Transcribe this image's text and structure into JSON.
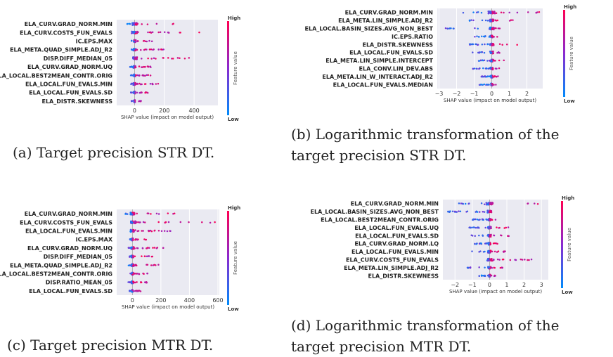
{
  "colorbar": {
    "high": "High",
    "low": "Low",
    "title": "Feature value",
    "color_high": "#ff0052",
    "color_low": "#008bfb"
  },
  "xaxis_title": "SHAP value (impact on model output)",
  "panels": [
    {
      "caption": "(a) Target precision STR DT."
    },
    {
      "caption": "(b) Logarithmic transformation of the target precision STR DT."
    },
    {
      "caption": "(c) Target precision MTR DT."
    },
    {
      "caption": "(d) Logarithmic transformation of the target precision MTR DT."
    }
  ],
  "chart_data": [
    {
      "type": "scatter",
      "subtype": "shap_beeswarm",
      "features": [
        "ELA_CURV.GRAD_NORM.MIN",
        "ELA_CURV.COSTS_FUN_EVALS",
        "IC.EPS.MAX",
        "ELA_META.QUAD_SIMPLE.ADJ_R2",
        "DISP.DIFF_MEDIAN_05",
        "ELA_CURV.GRAD_NORM.UQ",
        "ELA_LOCAL.BEST2MEAN_CONTR.ORIG",
        "ELA_LOCAL.FUN_EVALS.MIN",
        "ELA_LOCAL.FUN_EVALS.SD",
        "ELA_DISTR.SKEWNESS"
      ],
      "xticks": [
        0,
        200,
        400
      ],
      "xlim": [
        -120,
        560
      ],
      "spread": [
        [
          -60,
          330
        ],
        [
          -20,
          470
        ],
        [
          -20,
          120
        ],
        [
          -20,
          200
        ],
        [
          -10,
          400
        ],
        [
          -30,
          150
        ],
        [
          -25,
          120
        ],
        [
          -25,
          180
        ],
        [
          -25,
          90
        ],
        [
          -20,
          60
        ]
      ],
      "xlabel": "SHAP value (impact on model output)",
      "grid": true
    },
    {
      "type": "scatter",
      "subtype": "shap_beeswarm",
      "features": [
        "ELA_CURV.GRAD_NORM.MIN",
        "ELA_META.LIN_SIMPLE.ADJ_R2",
        "ELA_LOCAL.BASIN_SIZES.AVG_NON_BEST",
        "IC.EPS.RATIO",
        "ELA_DISTR.SKEWNESS",
        "ELA_LOCAL.FUN_EVALS.SD",
        "ELA_META.LIN_SIMPLE.INTERCEPT",
        "ELA_CONV.LIN_DEV.ABS",
        "ELA_META.LIN_W_INTERACT.ADJ_R2",
        "ELA_LOCAL.FUN_EVALS.MEDIAN"
      ],
      "xticks": [
        -3,
        -2,
        -1,
        0,
        1,
        2
      ],
      "xlim": [
        -3.1,
        2.9
      ],
      "spread": [
        [
          -2.0,
          2.8
        ],
        [
          -1.3,
          1.2
        ],
        [
          -2.8,
          0.5
        ],
        [
          -1.0,
          0.4
        ],
        [
          -1.3,
          1.6
        ],
        [
          -1.1,
          1.0
        ],
        [
          -0.8,
          0.7
        ],
        [
          -1.1,
          0.6
        ],
        [
          -0.6,
          0.4
        ],
        [
          -0.8,
          0.3
        ]
      ],
      "xlabel": "SHAP value (impact on model output)",
      "grid": true
    },
    {
      "type": "scatter",
      "subtype": "shap_beeswarm",
      "features": [
        "ELA_CURV.GRAD_NORM.MIN",
        "ELA_CURV.COSTS_FUN_EVALS",
        "ELA_LOCAL.FUN_EVALS.MIN",
        "IC.EPS.MAX",
        "ELA_CURV.GRAD_NORM.UQ",
        "DISP.DIFF_MEDIAN_05",
        "ELA_META.QUAD_SIMPLE.ADJ_R2",
        "ELA_LOCAL.BEST2MEAN_CONTR.ORIG",
        "DISP.RATIO_MEAN_05",
        "ELA_LOCAL.FUN_EVALS.SD"
      ],
      "xticks": [
        0,
        200,
        400,
        600
      ],
      "xlim": [
        -110,
        610
      ],
      "spread": [
        [
          -60,
          330
        ],
        [
          -10,
          590
        ],
        [
          -20,
          330
        ],
        [
          -20,
          120
        ],
        [
          -30,
          220
        ],
        [
          -20,
          150
        ],
        [
          -30,
          200
        ],
        [
          -30,
          120
        ],
        [
          -30,
          120
        ],
        [
          -20,
          60
        ]
      ],
      "xlabel": "SHAP value (impact on model output)",
      "grid": true
    },
    {
      "type": "scatter",
      "subtype": "shap_beeswarm",
      "features": [
        "ELA_CURV.GRAD_NORM.MIN",
        "ELA_LOCAL.BASIN_SIZES.AVG_NON_BEST",
        "ELA_LOCAL.BEST2MEAN_CONTR.ORIG",
        "ELA_LOCAL.FUN_EVALS.UQ",
        "ELA_LOCAL.FUN_EVALS.SD",
        "ELA_CURV.GRAD_NORM.LQ",
        "ELA_LOCAL.FUN_EVALS.MIN",
        "ELA_CURV.COSTS_FUN_EVALS",
        "ELA_META.LIN_SIMPLE.ADJ_R2",
        "ELA_DISTR.SKEWNESS"
      ],
      "xticks": [
        -2,
        -1,
        0,
        1,
        2,
        3
      ],
      "xlim": [
        -2.7,
        3.4
      ],
      "spread": [
        [
          -1.9,
          3.2
        ],
        [
          -2.4,
          0.6
        ],
        [
          -1.0,
          0.5
        ],
        [
          -1.2,
          1.1
        ],
        [
          -1.1,
          1.2
        ],
        [
          -0.9,
          0.6
        ],
        [
          -1.2,
          1.1
        ],
        [
          -0.5,
          2.9
        ],
        [
          -1.3,
          0.8
        ],
        [
          -0.6,
          0.4
        ]
      ],
      "xlabel": "SHAP value (impact on model output)",
      "grid": true
    }
  ]
}
